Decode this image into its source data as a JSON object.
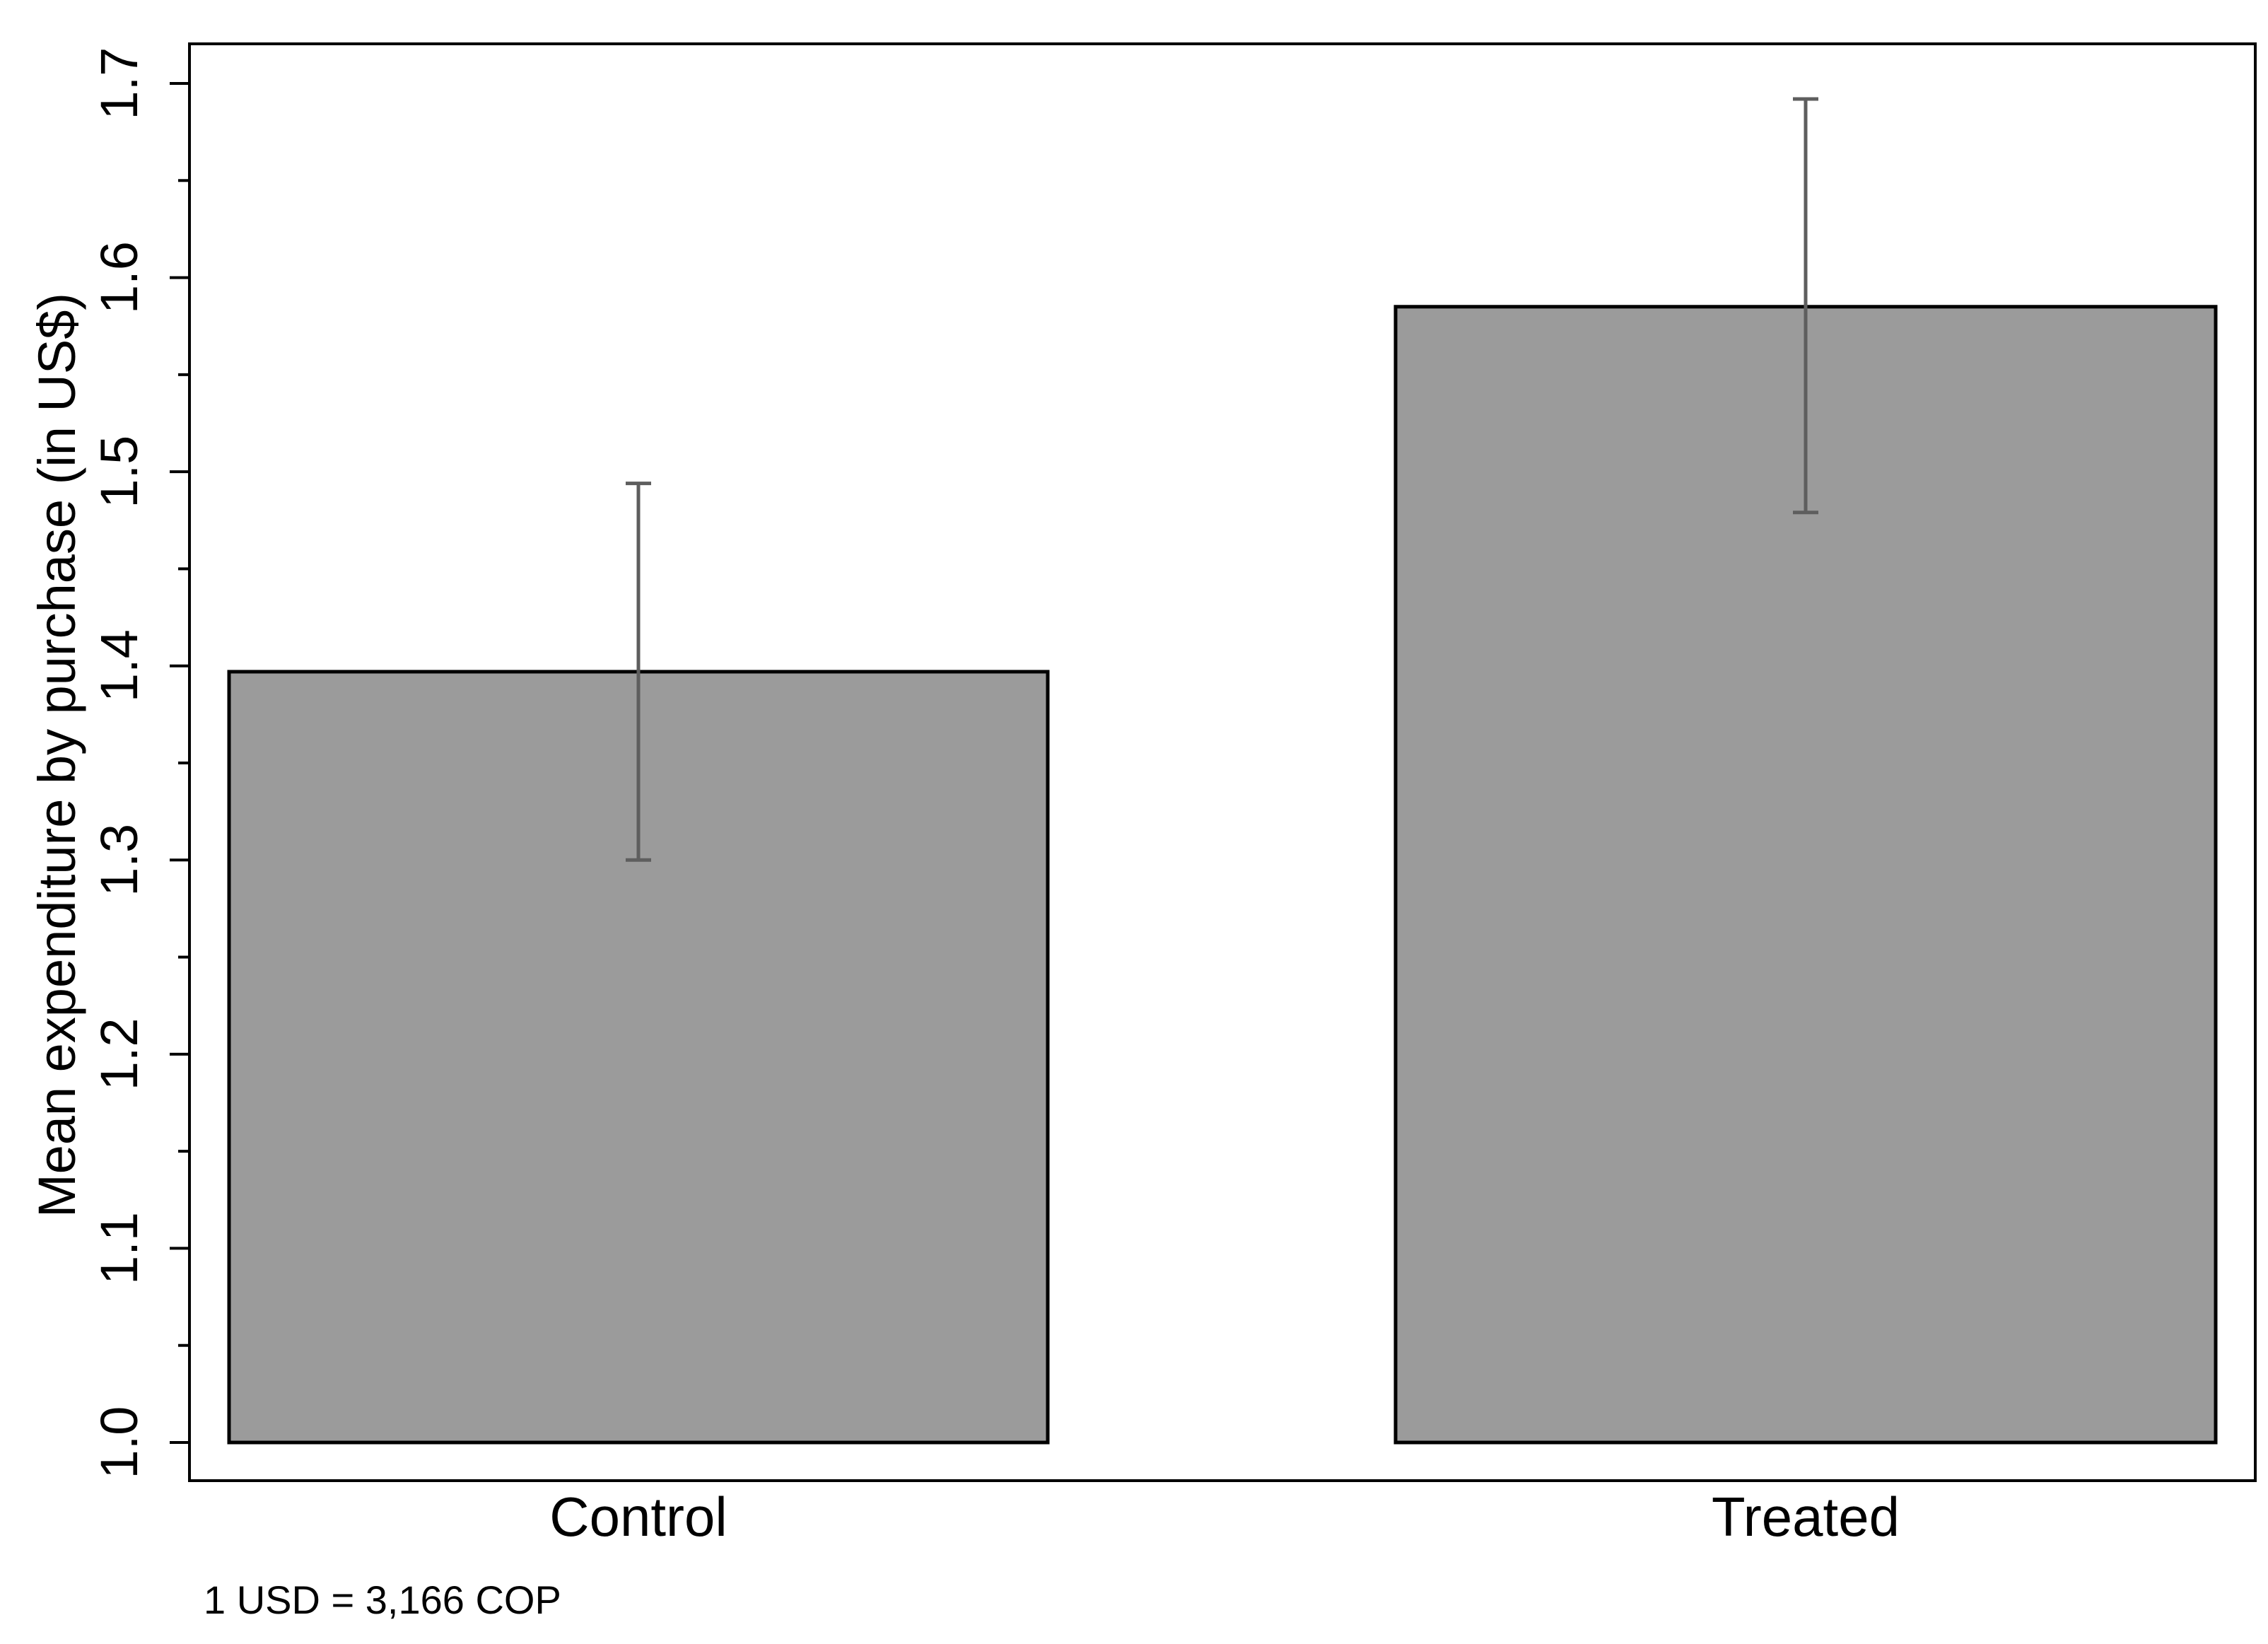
{
  "chart_data": {
    "type": "bar",
    "categories": [
      "Control",
      "Treated"
    ],
    "values": [
      1.397,
      1.585
    ],
    "error_bars": {
      "lower": [
        1.3,
        1.479
      ],
      "upper": [
        1.494,
        1.692
      ]
    },
    "title": "",
    "xlabel": "",
    "ylabel": "Mean expenditure by purchase (in US$)",
    "ylim": [
      1.0,
      1.7
    ],
    "y_ticks": [
      "1.0",
      "1.1",
      "1.2",
      "1.3",
      "1.4",
      "1.5",
      "1.6",
      "1.7"
    ],
    "y_minor_step": 0.05,
    "grid": false,
    "legend": "none",
    "note": "1 USD = 3,166 COP",
    "colors": {
      "bar_fill": "#9b9b9b",
      "bar_stroke": "#000000",
      "error_bar": "#5e5e5e",
      "frame": "#000000"
    }
  }
}
